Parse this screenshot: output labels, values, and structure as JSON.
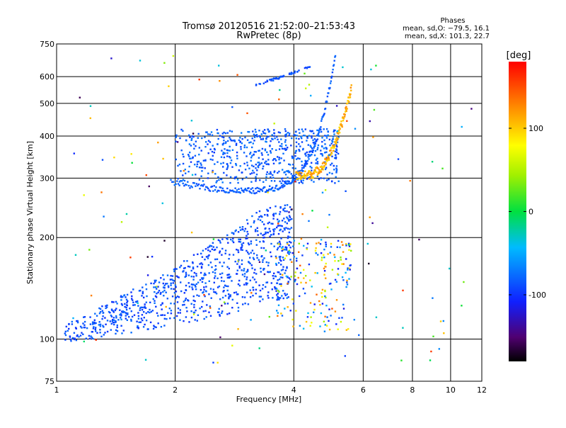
{
  "chart_data": {
    "type": "scatter",
    "title": "Tromsø 20120516 21:52:00–21:53:43",
    "subtitle": "RwPretec (8p)",
    "xlabel": "Frequency [MHz]",
    "ylabel": "Stationary phase Virtual Height [km]",
    "xscale": "log",
    "yscale": "log",
    "xlim": [
      1,
      12
    ],
    "ylim": [
      75,
      750
    ],
    "xticks": [
      1,
      2,
      4,
      6,
      8,
      10,
      12
    ],
    "yticks": [
      75,
      100,
      200,
      300,
      400,
      500,
      600,
      750
    ],
    "grid": true,
    "phases_box": {
      "title": "Phases",
      "line1": "mean, sd,O: −79.5, 16.1",
      "line2": "mean, sd,X: 101.3, 22.7"
    },
    "colorbar": {
      "label": "[deg]",
      "range": [
        -180,
        180
      ],
      "ticks": [
        100,
        0,
        -100
      ],
      "colormap": "rainbow"
    },
    "point_groups": [
      {
        "name": "O-trace lower layer",
        "phase": -90,
        "x_range": [
          1.05,
          4.0
        ],
        "y_range": [
          98,
          250
        ]
      },
      {
        "name": "O-trace upper layer",
        "phase": -85,
        "x_range": [
          2.0,
          5.2
        ],
        "y_range": [
          290,
          420
        ]
      },
      {
        "name": "O-mode F-trace",
        "phase": -85,
        "x_range": [
          1.95,
          5.1
        ],
        "y_range": [
          275,
          640
        ]
      },
      {
        "name": "X-mode F-trace",
        "phase": 110,
        "x_range": [
          4.05,
          5.6
        ],
        "y_range": [
          305,
          560
        ]
      },
      {
        "name": "mixed-phase scatter",
        "phase": 60,
        "x_range": [
          3.6,
          5.6
        ],
        "y_range": [
          105,
          200
        ]
      }
    ]
  }
}
